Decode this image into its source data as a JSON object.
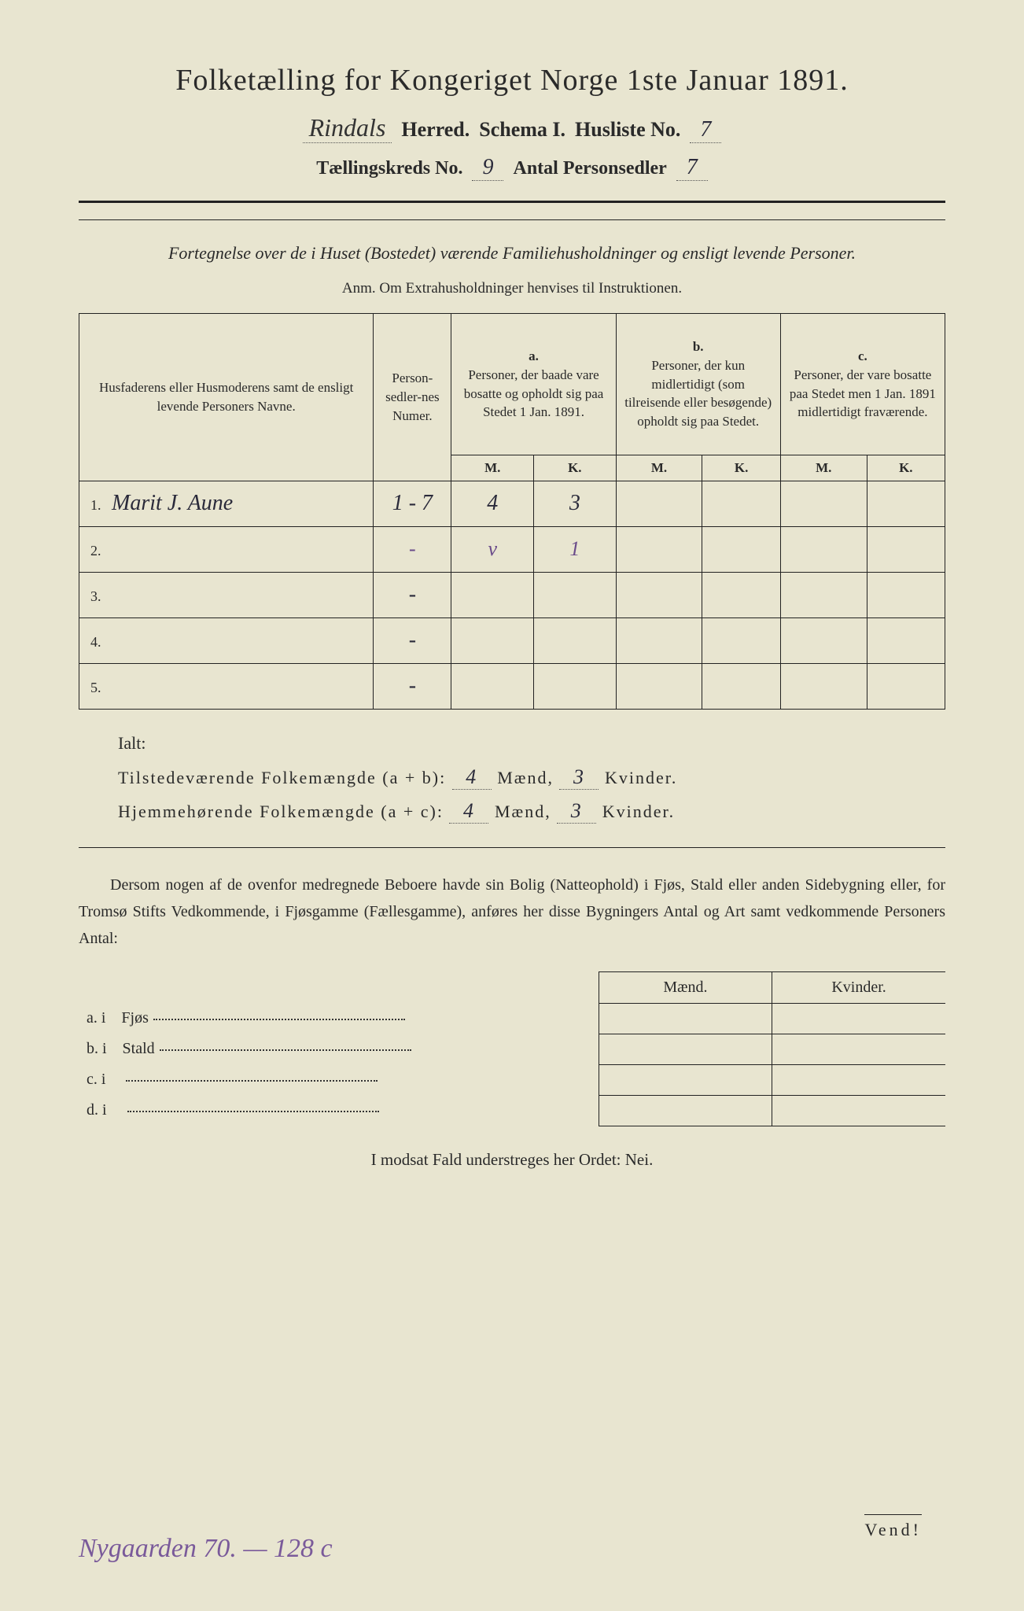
{
  "title": "Folketælling for Kongeriget Norge 1ste Januar 1891.",
  "header": {
    "herred_value": "Rindals",
    "herred_label": "Herred.",
    "schema_label": "Schema I.",
    "husliste_label": "Husliste No.",
    "husliste_value": "7",
    "kreds_label": "Tællingskreds No.",
    "kreds_value": "9",
    "sedler_label": "Antal Personsedler",
    "sedler_value": "7"
  },
  "subtitle": "Fortegnelse over de i Huset (Bostedet) værende Familiehusholdninger og ensligt levende Personer.",
  "anm": "Anm.   Om Extrahusholdninger henvises til Instruktionen.",
  "table": {
    "col1": "Husfaderens eller Husmoderens samt de ensligt levende Personers Navne.",
    "col2": "Person-sedler-nes Numer.",
    "col_a_label": "a.",
    "col_a": "Personer, der baade vare bosatte og opholdt sig paa Stedet 1 Jan. 1891.",
    "col_b_label": "b.",
    "col_b": "Personer, der kun midlertidigt (som tilreisende eller besøgende) opholdt sig paa Stedet.",
    "col_c_label": "c.",
    "col_c": "Personer, der vare bosatte paa Stedet men 1 Jan. 1891 midlertidigt fraværende.",
    "M": "M.",
    "K": "K.",
    "rows": [
      {
        "num": "1.",
        "name": "Marit J. Aune",
        "pn": "1 - 7",
        "am": "4",
        "ak": "3",
        "bm": "",
        "bk": "",
        "cm": "",
        "ck": ""
      },
      {
        "num": "2.",
        "name": "",
        "pn": "-",
        "am": "v",
        "ak": "1",
        "bm": "",
        "bk": "",
        "cm": "",
        "ck": ""
      },
      {
        "num": "3.",
        "name": "",
        "pn": "-",
        "am": "",
        "ak": "",
        "bm": "",
        "bk": "",
        "cm": "",
        "ck": ""
      },
      {
        "num": "4.",
        "name": "",
        "pn": "-",
        "am": "",
        "ak": "",
        "bm": "",
        "bk": "",
        "cm": "",
        "ck": ""
      },
      {
        "num": "5.",
        "name": "",
        "pn": "-",
        "am": "",
        "ak": "",
        "bm": "",
        "bk": "",
        "cm": "",
        "ck": ""
      }
    ]
  },
  "summary": {
    "ialt": "Ialt:",
    "line1_label": "Tilstedeværende Folkemængde (a + b):",
    "line1_m": "4",
    "line1_k": "3",
    "line2_label": "Hjemmehørende Folkemængde (a + c):",
    "line2_m": "4",
    "line2_k": "3",
    "maend": "Mænd,",
    "kvinder": "Kvinder."
  },
  "paragraph": "Dersom nogen af de ovenfor medregnede Beboere havde sin Bolig (Natteophold) i Fjøs, Stald eller anden Sidebygning eller, for Tromsø Stifts Vedkommende, i Fjøsgamme (Fællesgamme), anføres her disse Bygningers Antal og Art samt vedkommende Personers Antal:",
  "lower": {
    "maend": "Mænd.",
    "kvinder": "Kvinder.",
    "rows": [
      {
        "lbl": "a.  i",
        "place": "Fjøs"
      },
      {
        "lbl": "b.  i",
        "place": "Stald"
      },
      {
        "lbl": "c.  i",
        "place": ""
      },
      {
        "lbl": "d.  i",
        "place": ""
      }
    ]
  },
  "nei": "I modsat Fald understreges her Ordet: Nei.",
  "bottom_note": "Nygaarden 70. — 128 c",
  "vend": "Vend!"
}
